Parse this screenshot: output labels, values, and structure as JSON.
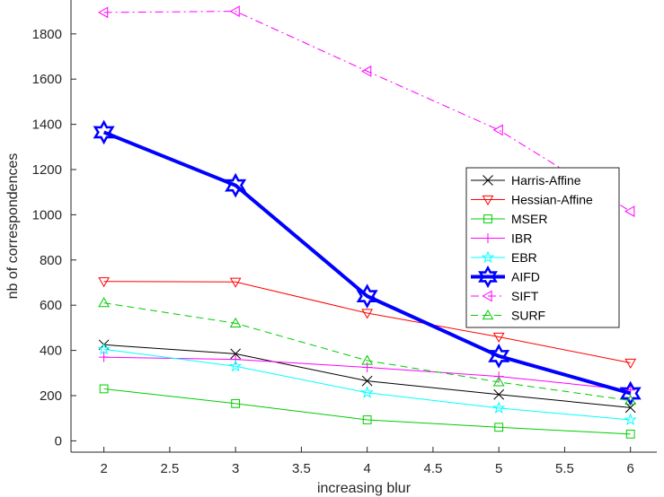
{
  "chart_data": {
    "type": "line",
    "xlabel": "increasing blur",
    "ylabel": "nb of correspondences",
    "xlim": [
      1.75,
      6.2
    ],
    "ylim": [
      -50,
      1950
    ],
    "xticks": [
      2,
      2.5,
      3,
      3.5,
      4,
      4.5,
      5,
      5.5,
      6
    ],
    "xtick_labels": [
      "2",
      "2.5",
      "3",
      "3.5",
      "4",
      "4.5",
      "5",
      "5.5",
      "6"
    ],
    "yticks": [
      0,
      200,
      400,
      600,
      800,
      1000,
      1200,
      1400,
      1600,
      1800
    ],
    "ytick_labels": [
      "0",
      "200",
      "400",
      "600",
      "800",
      "1000",
      "1200",
      "1400",
      "1600",
      "1800"
    ],
    "grid": false,
    "legend_position": "right",
    "x": [
      2,
      3,
      4,
      5,
      6
    ],
    "series": [
      {
        "name": "Harris-Affine",
        "values": [
          425,
          385,
          265,
          205,
          147
        ],
        "color": "#000000",
        "marker": "x",
        "dash": "solid",
        "width": 1
      },
      {
        "name": "Hessian-Affine",
        "values": [
          705,
          703,
          565,
          460,
          345
        ],
        "color": "#ff0000",
        "marker": "triangle-down",
        "dash": "solid",
        "width": 1
      },
      {
        "name": "MSER",
        "values": [
          230,
          165,
          93,
          60,
          30
        ],
        "color": "#00cc00",
        "marker": "square",
        "dash": "solid",
        "width": 1
      },
      {
        "name": "IBR",
        "values": [
          370,
          360,
          325,
          285,
          225
        ],
        "color": "#ff00ff",
        "marker": "plus",
        "dash": "solid",
        "width": 1
      },
      {
        "name": "EBR",
        "values": [
          405,
          330,
          213,
          145,
          93
        ],
        "color": "#00ffff",
        "marker": "star",
        "dash": "solid",
        "width": 1
      },
      {
        "name": "AIFD",
        "values": [
          1365,
          1130,
          640,
          375,
          210
        ],
        "color": "#0000ff",
        "marker": "hexagram",
        "dash": "solid",
        "width": 4
      },
      {
        "name": "SIFT",
        "values": [
          1895,
          1900,
          1635,
          1375,
          1015
        ],
        "color": "#ff00ff",
        "marker": "triangle-left",
        "dash": "dashdot",
        "width": 1
      },
      {
        "name": "SURF",
        "values": [
          610,
          520,
          355,
          260,
          178
        ],
        "color": "#00cc00",
        "marker": "triangle-up",
        "dash": "dashed",
        "width": 1
      }
    ]
  }
}
